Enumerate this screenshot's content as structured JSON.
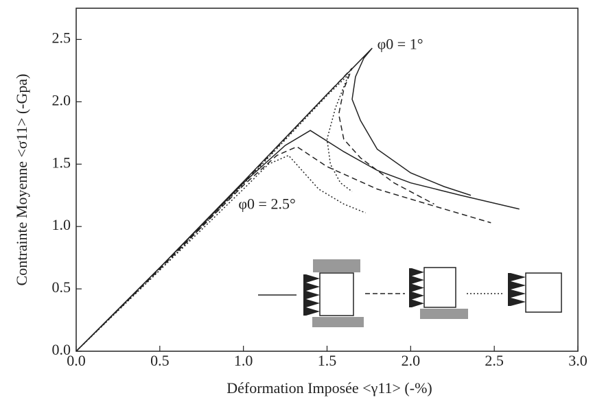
{
  "chart_data": {
    "type": "line",
    "xlabel": "Déformation Imposée <γ11> (-%)",
    "ylabel": "Contrainte Moyenne <σ11> (-Gpa)",
    "annotations": [
      {
        "text": "φ0 = 1°",
        "x": 1.8,
        "y": 2.45
      },
      {
        "text": "φ0 = 2.5°",
        "x": 0.97,
        "y": 1.17
      }
    ],
    "xlim": [
      0,
      3.0
    ],
    "ylim": [
      0,
      2.75
    ],
    "xticks": [
      {
        "value": 0,
        "label": "0.0"
      },
      0.5,
      {
        "value": 1,
        "label": "1.0"
      },
      1.5,
      {
        "value": 2,
        "label": "2.0"
      },
      2.5,
      {
        "value": 3,
        "label": "3.0"
      }
    ],
    "yticks": [
      {
        "value": 0,
        "label": "0.0"
      },
      0.5,
      {
        "value": 1,
        "label": "1.0"
      },
      1.5,
      {
        "value": 2,
        "label": "2.0"
      },
      2.5
    ],
    "series": [
      {
        "color": "#222",
        "style": "solid",
        "x": [
          0,
          0.5,
          1.0,
          1.5,
          1.77,
          1.72,
          1.67,
          1.65,
          1.7,
          1.8,
          2.0,
          2.2,
          2.36
        ],
        "values": [
          0,
          0.67,
          1.36,
          2.06,
          2.43,
          2.35,
          2.2,
          2.02,
          1.85,
          1.62,
          1.43,
          1.32,
          1.25
        ]
      },
      {
        "color": "#222",
        "style": "dashed",
        "x": [
          0,
          0.5,
          1.0,
          1.5,
          1.65,
          1.6,
          1.57,
          1.6,
          1.7,
          1.9,
          2.14
        ],
        "values": [
          0,
          0.66,
          1.35,
          2.06,
          2.27,
          2.1,
          1.9,
          1.7,
          1.55,
          1.35,
          1.18
        ]
      },
      {
        "color": "#222",
        "style": "dotted",
        "x": [
          0,
          0.5,
          1.0,
          1.5,
          1.63,
          1.55,
          1.5,
          1.52,
          1.58,
          1.65
        ],
        "values": [
          0,
          0.65,
          1.34,
          2.05,
          2.22,
          1.95,
          1.7,
          1.5,
          1.35,
          1.28
        ]
      },
      {
        "color": "#222",
        "style": "solid",
        "x": [
          0,
          0.5,
          1.0,
          1.25,
          1.4,
          1.6,
          1.8,
          2.0,
          2.3,
          2.65
        ],
        "values": [
          0,
          0.67,
          1.35,
          1.65,
          1.77,
          1.6,
          1.45,
          1.35,
          1.25,
          1.14
        ]
      },
      {
        "color": "#222",
        "style": "dashed",
        "x": [
          0,
          0.5,
          1.0,
          1.2,
          1.32,
          1.5,
          1.8,
          2.1,
          2.48
        ],
        "values": [
          0,
          0.66,
          1.33,
          1.57,
          1.64,
          1.48,
          1.3,
          1.18,
          1.03
        ]
      },
      {
        "color": "#222",
        "style": "dotted",
        "x": [
          0,
          0.5,
          1.0,
          1.15,
          1.27,
          1.35,
          1.45,
          1.6,
          1.73
        ],
        "values": [
          0,
          0.65,
          1.3,
          1.5,
          1.57,
          1.45,
          1.3,
          1.18,
          1.11
        ]
      }
    ]
  }
}
